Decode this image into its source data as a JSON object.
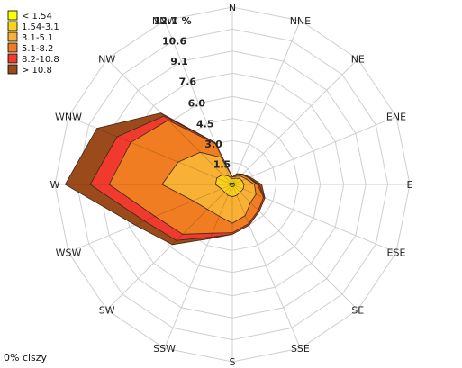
{
  "chart_data": {
    "type": "wind-rose",
    "directions": [
      "N",
      "NNE",
      "NE",
      "ENE",
      "E",
      "ESE",
      "SE",
      "SSE",
      "S",
      "SSW",
      "SW",
      "WSW",
      "W",
      "WNW",
      "NW",
      "NNW"
    ],
    "radial_ticks": [
      1.5,
      3.0,
      4.5,
      6.0,
      7.6,
      9.1,
      10.6,
      12.1
    ],
    "radial_tick_labels": [
      "1.5",
      "3.0",
      "4.5",
      "6.0",
      "7.6",
      "9.1",
      "10.6",
      "12.1 %"
    ],
    "rmax": 12.1,
    "legend_placement": "top-left",
    "calm_text": "0% ciszy",
    "series": [
      {
        "name": "> 10.8",
        "color": "#9b4a1c",
        "values": [
          0.5,
          0.8,
          1.0,
          1.3,
          2.0,
          2.4,
          2.6,
          3.0,
          3.4,
          4.0,
          5.8,
          7.2,
          11.4,
          10.0,
          6.9,
          3.1
        ]
      },
      {
        "name": "8.2-10.8",
        "color": "#f03a2e",
        "values": [
          0.5,
          0.7,
          1.0,
          1.2,
          1.8,
          2.4,
          2.6,
          3.0,
          3.4,
          3.9,
          5.4,
          6.5,
          9.7,
          8.5,
          6.6,
          3.1
        ]
      },
      {
        "name": "5.1-8.2",
        "color": "#f07d22",
        "values": [
          0.5,
          0.7,
          0.95,
          1.2,
          1.7,
          2.3,
          2.5,
          2.9,
          3.3,
          3.6,
          4.8,
          5.7,
          8.4,
          7.5,
          6.2,
          3.0
        ]
      },
      {
        "name": "3.1-5.1",
        "color": "#f8b035",
        "values": [
          0.5,
          0.6,
          0.8,
          1.0,
          1.5,
          1.75,
          1.75,
          2.3,
          2.65,
          2.35,
          2.4,
          2.9,
          4.8,
          4.0,
          3.1,
          2.0
        ]
      },
      {
        "name": "1.54-3.1",
        "color": "#fdd21c",
        "values": [
          0.4,
          0.45,
          0.6,
          0.7,
          0.8,
          0.8,
          0.75,
          0.8,
          0.85,
          0.8,
          0.75,
          0.8,
          1.15,
          1.15,
          0.95,
          0.6
        ]
      },
      {
        "name": "< 1.54",
        "color": "#ffff00",
        "values": [
          0.1,
          0.1,
          0.15,
          0.15,
          0.15,
          0.15,
          0.15,
          0.15,
          0.15,
          0.15,
          0.15,
          0.15,
          0.2,
          0.2,
          0.15,
          0.1
        ]
      }
    ],
    "grid": true
  }
}
